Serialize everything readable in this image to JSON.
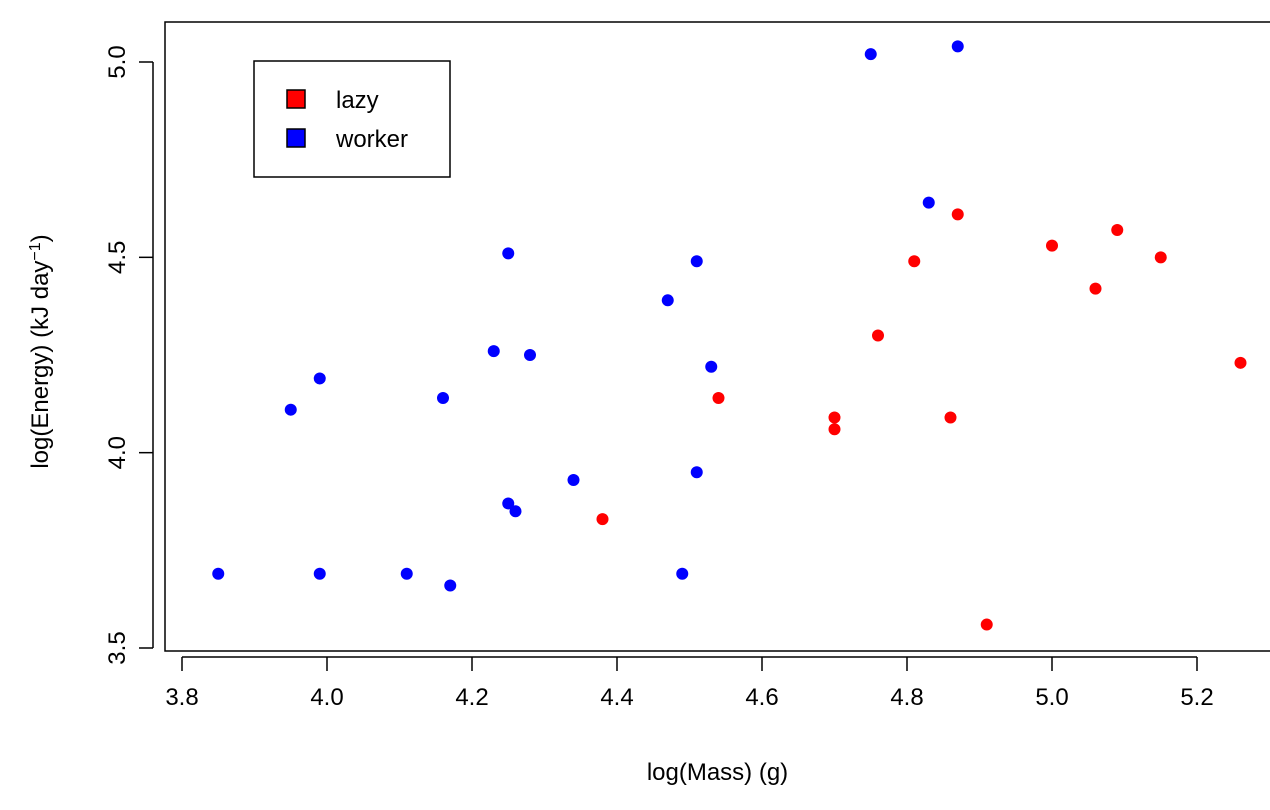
{
  "chart_data": {
    "type": "scatter",
    "title": "",
    "xlabel": "log(Mass) (g)",
    "ylabel_text": "log(Energy) (kJ day",
    "ylabel_superscript": "−1",
    "ylabel_close": ")",
    "xlim": [
      3.8,
      5.3
    ],
    "ylim": [
      3.5,
      5.1
    ],
    "xticks": [
      "3.8",
      "4.0",
      "4.2",
      "4.4",
      "4.6",
      "4.8",
      "5.0",
      "5.2"
    ],
    "yticks": [
      "3.5",
      "4.0",
      "4.5",
      "5.0"
    ],
    "grid": false,
    "legend_position": "top-left",
    "series": [
      {
        "name": "lazy",
        "color": "#ff0000",
        "points": [
          {
            "x": 4.38,
            "y": 3.83
          },
          {
            "x": 4.54,
            "y": 4.14
          },
          {
            "x": 4.7,
            "y": 4.09
          },
          {
            "x": 4.7,
            "y": 4.06
          },
          {
            "x": 4.76,
            "y": 4.3
          },
          {
            "x": 4.81,
            "y": 4.49
          },
          {
            "x": 4.86,
            "y": 4.09
          },
          {
            "x": 4.87,
            "y": 4.61
          },
          {
            "x": 4.91,
            "y": 3.56
          },
          {
            "x": 5.0,
            "y": 4.53
          },
          {
            "x": 5.06,
            "y": 4.42
          },
          {
            "x": 5.09,
            "y": 4.57
          },
          {
            "x": 5.15,
            "y": 4.5
          },
          {
            "x": 5.26,
            "y": 4.23
          }
        ]
      },
      {
        "name": "worker",
        "color": "#0000ff",
        "points": [
          {
            "x": 3.85,
            "y": 3.69
          },
          {
            "x": 3.95,
            "y": 4.11
          },
          {
            "x": 3.99,
            "y": 4.19
          },
          {
            "x": 3.99,
            "y": 3.69
          },
          {
            "x": 4.11,
            "y": 3.69
          },
          {
            "x": 4.16,
            "y": 4.14
          },
          {
            "x": 4.17,
            "y": 3.66
          },
          {
            "x": 4.23,
            "y": 4.26
          },
          {
            "x": 4.25,
            "y": 4.51
          },
          {
            "x": 4.25,
            "y": 3.87
          },
          {
            "x": 4.26,
            "y": 3.85
          },
          {
            "x": 4.28,
            "y": 4.25
          },
          {
            "x": 4.34,
            "y": 3.93
          },
          {
            "x": 4.47,
            "y": 4.39
          },
          {
            "x": 4.49,
            "y": 3.69
          },
          {
            "x": 4.51,
            "y": 4.49
          },
          {
            "x": 4.51,
            "y": 3.95
          },
          {
            "x": 4.53,
            "y": 4.22
          },
          {
            "x": 4.75,
            "y": 5.02
          },
          {
            "x": 4.83,
            "y": 4.64
          },
          {
            "x": 4.87,
            "y": 5.04
          }
        ]
      }
    ]
  }
}
